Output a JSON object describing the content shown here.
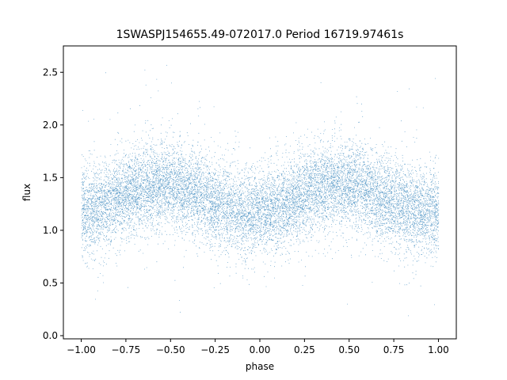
{
  "chart_data": {
    "type": "scatter",
    "title": "1SWASPJ154655.49-072017.0 Period 16719.97461s",
    "xlabel": "phase",
    "ylabel": "flux",
    "xlim": [
      -1.1,
      1.1
    ],
    "ylim": [
      -0.03,
      2.75
    ],
    "x_ticks": [
      -1.0,
      -0.75,
      -0.5,
      -0.25,
      0.0,
      0.25,
      0.5,
      0.75,
      1.0
    ],
    "x_tick_labels": [
      "−1.00",
      "−0.75",
      "−0.50",
      "−0.25",
      "0.00",
      "0.25",
      "0.50",
      "0.75",
      "1.00"
    ],
    "y_ticks": [
      0.0,
      0.5,
      1.0,
      1.5,
      2.0,
      2.5
    ],
    "y_tick_labels": [
      "0.0",
      "0.5",
      "1.0",
      "1.5",
      "2.0",
      "2.5"
    ],
    "grid": false,
    "marker_color": "#1f77b4",
    "series": [
      {
        "x_range": [
          -1.0,
          1.0
        ],
        "baseline_flux": 1.3,
        "modulation_amplitude": 0.13,
        "modulation_peak_phases": [
          -0.55,
          0.45
        ],
        "scatter_sigma": 0.2,
        "flux_range": [
          0.08,
          2.6
        ]
      }
    ]
  }
}
